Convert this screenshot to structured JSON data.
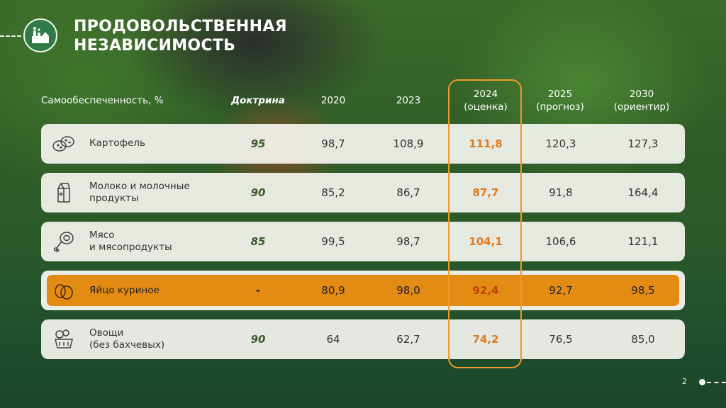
{
  "header": {
    "title_line1": "ПРОДОВОЛЬСТВЕННАЯ",
    "title_line2": "НЕЗАВИСИМОСТЬ"
  },
  "table": {
    "columns": {
      "indicator": "Самообеспеченность, %",
      "doctrine": "Доктрина",
      "y2020": "2020",
      "y2023": "2023",
      "y2024_line1": "2024",
      "y2024_line2": "(оценка)",
      "y2025_line1": "2025",
      "y2025_line2": "(прогноз)",
      "y2030_line1": "2030",
      "y2030_line2": "(ориентир)"
    },
    "rows": [
      {
        "label_line1": "Картофель",
        "label_line2": "",
        "icon": "potato-icon",
        "doctrine": "95",
        "y2020": "98,7",
        "y2023": "108,9",
        "y2024": "111,8",
        "y2025": "120,3",
        "y2030": "127,3"
      },
      {
        "label_line1": "Молоко и молочные",
        "label_line2": "продукты",
        "icon": "milk-carton-icon",
        "doctrine": "90",
        "y2020": "85,2",
        "y2023": "86,7",
        "y2024": "87,7",
        "y2025": "91,8",
        "y2030": "164,4"
      },
      {
        "label_line1": "Мясо",
        "label_line2": "и мясопродукты",
        "icon": "meat-leg-icon",
        "doctrine": "85",
        "y2020": "99,5",
        "y2023": "98,7",
        "y2024": "104,1",
        "y2025": "106,6",
        "y2030": "121,1"
      },
      {
        "label_line1": "Яйцо куриное",
        "label_line2": "",
        "icon": "eggs-icon",
        "doctrine": "-",
        "y2020": "80,9",
        "y2023": "98,0",
        "y2024": "92,4",
        "y2025": "92,7",
        "y2030": "98,5"
      },
      {
        "label_line1": "Овощи",
        "label_line2": "(без бахчевых)",
        "icon": "vegetables-icon",
        "doctrine": "90",
        "y2020": "64",
        "y2023": "62,7",
        "y2024": "74,2",
        "y2025": "76,5",
        "y2030": "85,0"
      }
    ]
  },
  "footer": {
    "page_number": "2"
  },
  "colors": {
    "accent": "#e48b14",
    "highlight_text": "#e07a1f",
    "row_bg": "#f5f5f0",
    "brand_green": "#2f7a45"
  }
}
